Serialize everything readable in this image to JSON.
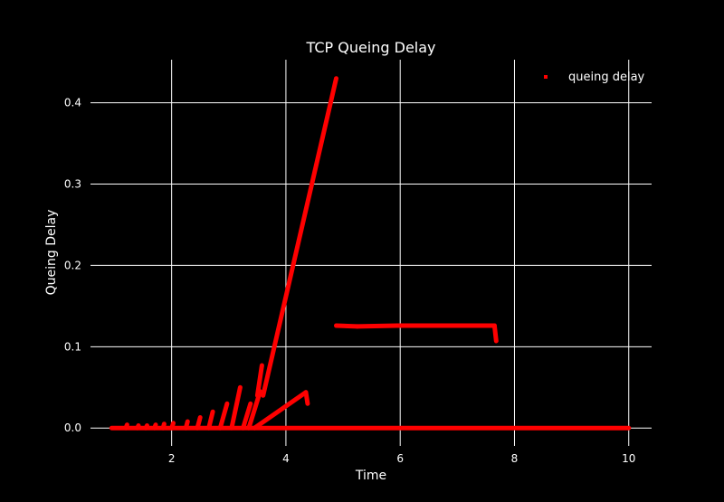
{
  "chart_data": {
    "type": "scatter",
    "title": "TCP Queing Delay",
    "xlabel": "Time",
    "ylabel": "Queing Delay",
    "xlim": [
      0.58,
      10.4
    ],
    "ylim": [
      -0.022,
      0.453
    ],
    "xticks": [
      2,
      4,
      6,
      8,
      10
    ],
    "xtick_labels": [
      "2",
      "4",
      "6",
      "8",
      "10"
    ],
    "yticks": [
      0.0,
      0.1,
      0.2,
      0.3,
      0.4
    ],
    "ytick_labels": [
      "0.0",
      "0.1",
      "0.2",
      "0.3",
      "0.4"
    ],
    "grid": true,
    "legend": "top-right",
    "background_color": "#000000",
    "grid_color": "#ffffff",
    "series": [
      {
        "name": "queing delay",
        "color": "#ff0000",
        "segments": [
          [
            [
              0.95,
              0.0
            ],
            [
              10.0,
              0.0
            ]
          ],
          [
            [
              1.2,
              0.0
            ],
            [
              1.22,
              0.004
            ]
          ],
          [
            [
              1.4,
              0.0
            ],
            [
              1.42,
              0.003
            ]
          ],
          [
            [
              1.55,
              0.0
            ],
            [
              1.57,
              0.003
            ]
          ],
          [
            [
              1.7,
              0.0
            ],
            [
              1.72,
              0.004
            ]
          ],
          [
            [
              1.85,
              0.0
            ],
            [
              1.87,
              0.005
            ]
          ],
          [
            [
              2.0,
              0.0
            ],
            [
              2.03,
              0.006
            ]
          ],
          [
            [
              2.25,
              0.0
            ],
            [
              2.28,
              0.008
            ]
          ],
          [
            [
              2.45,
              0.0
            ],
            [
              2.5,
              0.013
            ]
          ],
          [
            [
              2.65,
              0.0
            ],
            [
              2.72,
              0.02
            ]
          ],
          [
            [
              2.85,
              0.0
            ],
            [
              2.97,
              0.03
            ]
          ],
          [
            [
              3.05,
              0.0
            ],
            [
              3.2,
              0.05
            ]
          ],
          [
            [
              3.25,
              0.0
            ],
            [
              3.38,
              0.03
            ]
          ],
          [
            [
              3.35,
              0.0
            ],
            [
              3.55,
              0.045
            ]
          ],
          [
            [
              3.5,
              0.04
            ],
            [
              3.58,
              0.077
            ]
          ],
          [
            [
              3.45,
              0.0
            ],
            [
              4.35,
              0.044
            ]
          ],
          [
            [
              4.35,
              0.044
            ],
            [
              4.38,
              0.03
            ]
          ],
          [
            [
              3.6,
              0.04
            ],
            [
              4.88,
              0.43
            ]
          ],
          [
            [
              4.88,
              0.126
            ],
            [
              5.25,
              0.125
            ]
          ],
          [
            [
              5.25,
              0.125
            ],
            [
              5.95,
              0.126
            ]
          ],
          [
            [
              5.95,
              0.126
            ],
            [
              7.65,
              0.126
            ]
          ],
          [
            [
              7.65,
              0.126
            ],
            [
              7.68,
              0.107
            ]
          ]
        ]
      }
    ]
  }
}
